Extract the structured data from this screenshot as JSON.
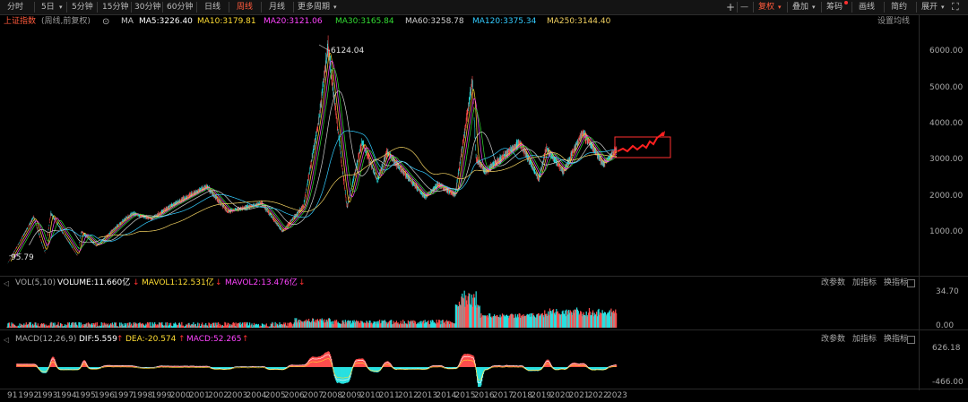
{
  "toolbar": {
    "tabs": [
      "分时",
      "5日",
      "5分钟",
      "15分钟",
      "30分钟",
      "60分钟",
      "日线",
      "周线",
      "月线",
      "更多周期"
    ],
    "active_tab": "周线",
    "plus": "+",
    "minus": "—",
    "fuquan": "复权",
    "diejia": "叠加",
    "choumai": "筹码",
    "huaxian": "画线",
    "jianyue": "简约",
    "zhankai": "展开"
  },
  "ma_row": {
    "index_name": "上证指数",
    "mode": "(周线,前复权)",
    "ma_label": "MA",
    "items": [
      {
        "text": "MA5:3226.40",
        "color": "#ffffff"
      },
      {
        "text": "MA10:3179.81",
        "color": "#ffdd33"
      },
      {
        "text": "MA20:3121.06",
        "color": "#ff44ff"
      },
      {
        "text": "MA30:3165.84",
        "color": "#33dd33"
      },
      {
        "text": "MA60:3258.78",
        "color": "#d0d0d0"
      },
      {
        "text": "MA120:3375.34",
        "color": "#33ccff"
      },
      {
        "text": "MA250:3144.40",
        "color": "#f0d060"
      }
    ],
    "settings": "设置均线"
  },
  "price_axis": [
    "6000.00",
    "5000.00",
    "4000.00",
    "3000.00",
    "2000.00",
    "1000.00"
  ],
  "annotations": {
    "high": "6124.04",
    "low": "95.79"
  },
  "vol_row": {
    "label": "VOL(5,10)",
    "volume": "VOLUME:11.660亿",
    "mavol1": "MAVOL1:12.531亿",
    "mavol2": "MAVOL2:13.476亿",
    "axis": [
      "34.70",
      "0.00"
    ]
  },
  "macd_row": {
    "label": "MACD(12,26,9)",
    "dif": "DIF:5.559",
    "dea": "DEA:-20.574",
    "macd": "MACD:52.265",
    "axis": [
      "626.18",
      "-466.00"
    ]
  },
  "panel_links": [
    "改参数",
    "加指标",
    "换指标"
  ],
  "years": [
    "91",
    "1992",
    "1993",
    "1994",
    "1995",
    "1996",
    "1997",
    "1998",
    "1999",
    "2000",
    "2001",
    "2002",
    "2003",
    "2004",
    "2005",
    "2006",
    "2007",
    "2008",
    "2009",
    "2010",
    "2011",
    "2012",
    "2013",
    "2014",
    "2015",
    "2016",
    "2017",
    "2018",
    "2019",
    "2020",
    "2021",
    "2022",
    "2023"
  ],
  "colors": {
    "up": "#ff4d4d",
    "down": "#29e0e0",
    "accent": "#ff5a3c",
    "box": "#ff3030"
  },
  "chart_data": {
    "type": "line",
    "title": "上证指数",
    "x": [
      "1991",
      "1992",
      "1993",
      "1994",
      "1995",
      "1996",
      "1997",
      "1998",
      "1999",
      "2000",
      "2001",
      "2002",
      "2003",
      "2004",
      "2005",
      "2006",
      "2007",
      "2008",
      "2009",
      "2010",
      "2011",
      "2012",
      "2013",
      "2014",
      "2015",
      "2016",
      "2017",
      "2018",
      "2019",
      "2020",
      "2021",
      "2022",
      "2023"
    ],
    "series": [
      {
        "name": "",
        "values": [
          130,
          700,
          900,
          600,
          600,
          900,
          1200,
          1300,
          1550,
          2000,
          2100,
          1500,
          1500,
          1350,
          1100,
          2000,
          5500,
          1900,
          3200,
          2800,
          2300,
          2100,
          2000,
          3000,
          4600,
          3000,
          3300,
          2500,
          3000,
          3400,
          3600,
          3100,
          3250
        ]
      }
    ],
    "ylim": [
      0,
      6500
    ],
    "volume": {
      "axis_max": 34.7,
      "axis_min": 0.0
    },
    "macd": {
      "axis_max": 626.18,
      "axis_min": -466.0
    }
  }
}
